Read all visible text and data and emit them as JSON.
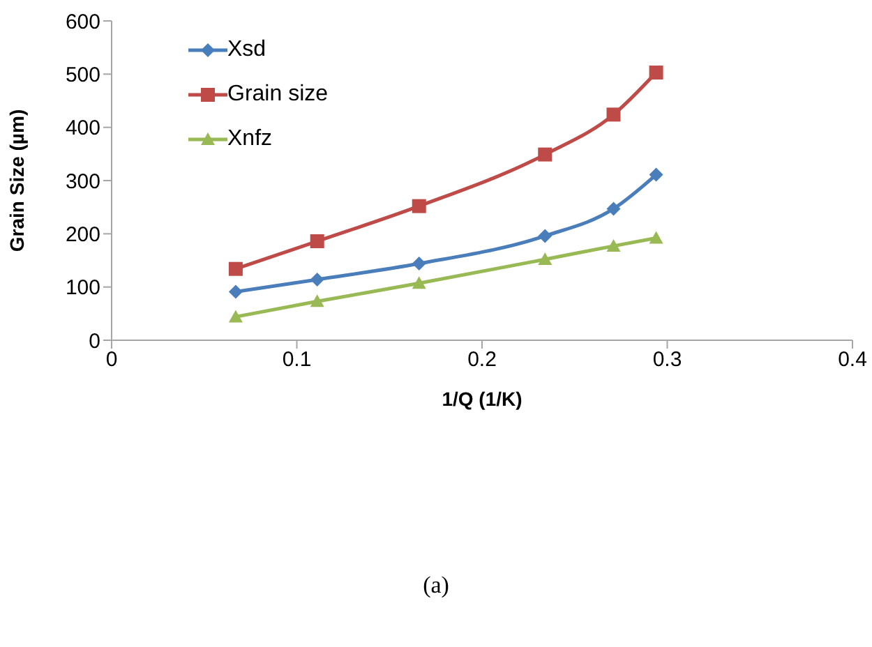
{
  "chart_data": {
    "type": "line",
    "x": [
      0.067,
      0.111,
      0.166,
      0.234,
      0.271,
      0.294
    ],
    "series": [
      {
        "name": "Xsd",
        "color": "#4a7ebb",
        "marker": "diamond",
        "values": [
          91,
          114,
          144,
          196,
          247,
          311
        ]
      },
      {
        "name": "Grain size",
        "color": "#be4b48",
        "marker": "square",
        "values": [
          134,
          186,
          252,
          349,
          424,
          503
        ]
      },
      {
        "name": "Xnfz",
        "color": "#98b954",
        "marker": "triangle",
        "values": [
          44,
          73,
          107,
          152,
          177,
          192
        ]
      }
    ],
    "xlabel": "1/Q (1/K)",
    "ylabel": "Grain Size (µm)",
    "xlim": [
      0,
      0.4
    ],
    "xticks": [
      0,
      0.1,
      0.2,
      0.3,
      0.4
    ],
    "ylim": [
      0,
      600
    ],
    "yticks": [
      0,
      100,
      200,
      300,
      400,
      500,
      600
    ],
    "grid": false,
    "legend": "top left",
    "line_style": "solid",
    "annotations": [
      "(a)"
    ]
  }
}
